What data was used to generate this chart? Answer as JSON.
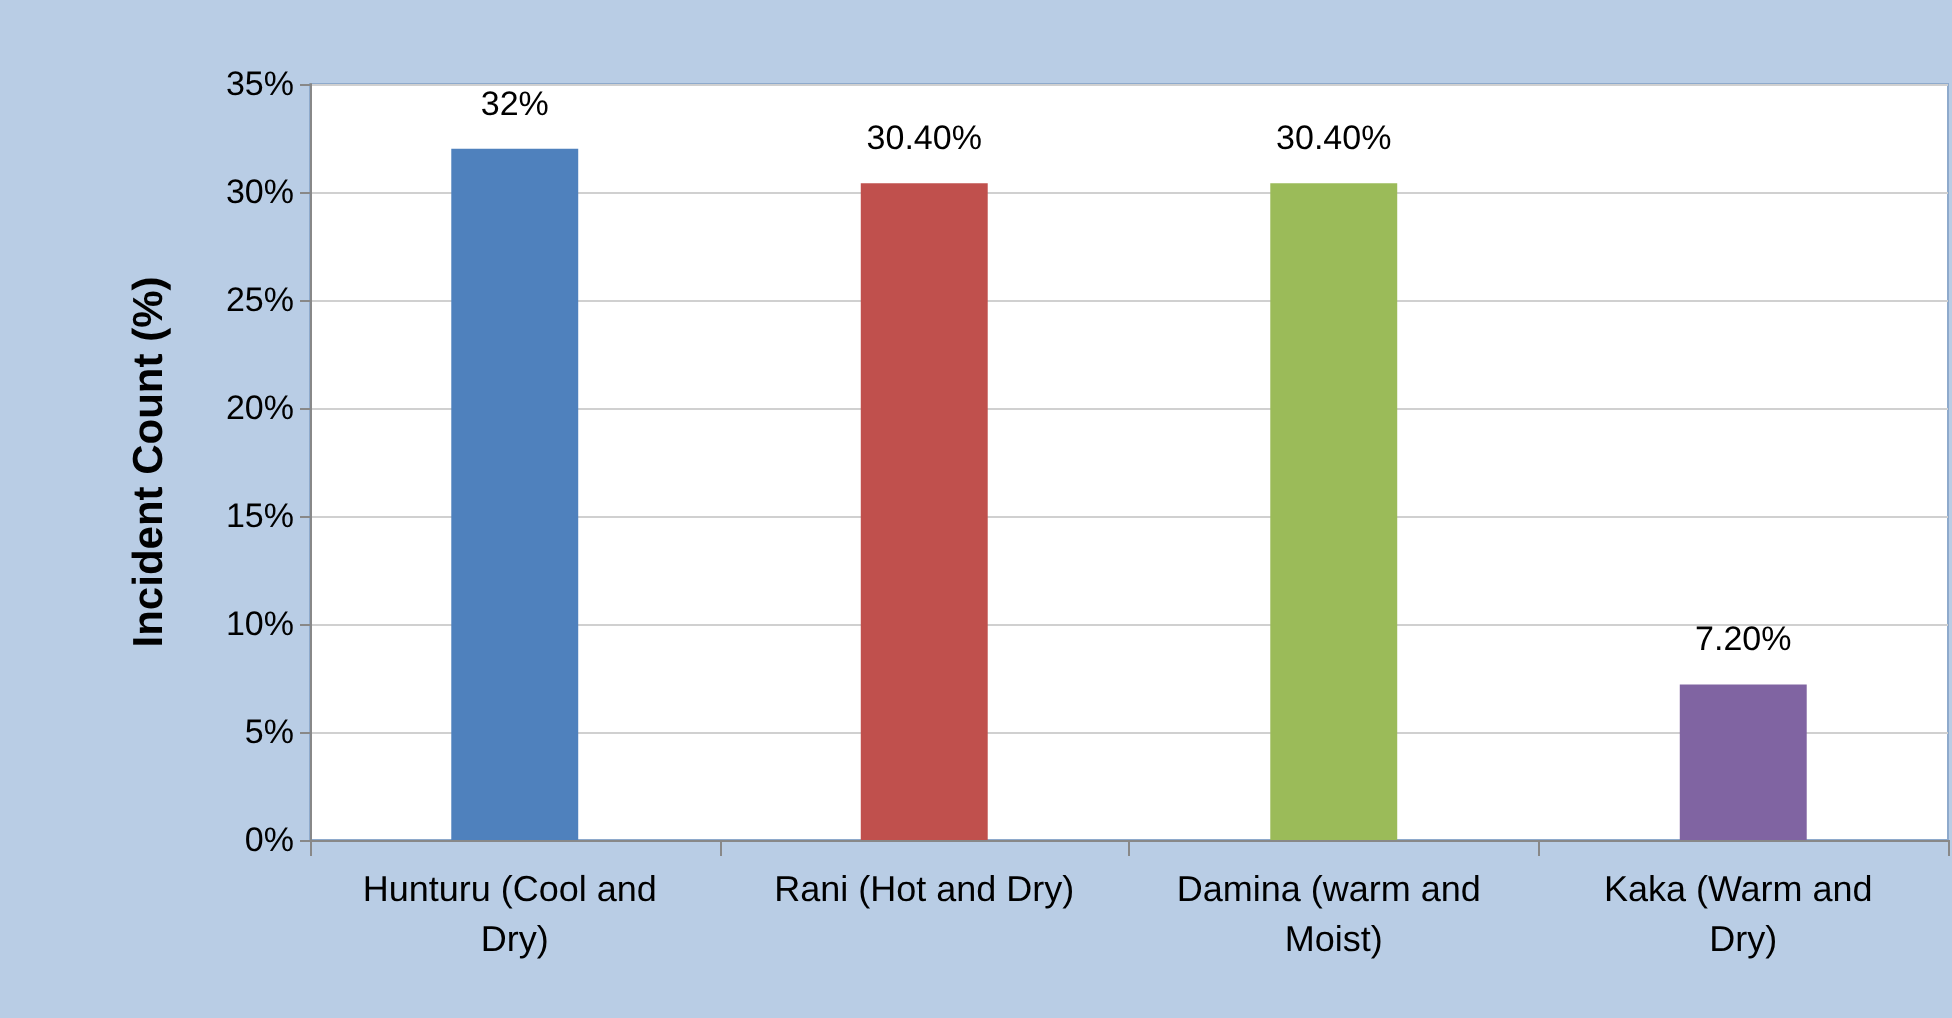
{
  "chart_data": {
    "type": "bar",
    "ylabel": "Incident Count (%)",
    "categories": [
      "Hunturu (Cool and Dry)",
      "Rani (Hot and Dry)",
      "Damina (warm and Moist)",
      "Kaka (Warm and Dry)"
    ],
    "values": [
      32,
      30.4,
      30.4,
      7.2
    ],
    "colors": [
      "#4f81bd",
      "#c0504d",
      "#9bbb59",
      "#8064a2"
    ],
    "value_labels": [
      "32%",
      "30.40%",
      "30.40%",
      "7.20%"
    ],
    "ylim": [
      0,
      35
    ],
    "yticks": [
      {
        "value": 0,
        "label": "0%"
      },
      {
        "value": 5,
        "label": "5%"
      },
      {
        "value": 10,
        "label": "10%"
      },
      {
        "value": 15,
        "label": "15%"
      },
      {
        "value": 20,
        "label": "20%"
      },
      {
        "value": 25,
        "label": "25%"
      },
      {
        "value": 30,
        "label": "30%"
      },
      {
        "value": 35,
        "label": "35%"
      }
    ],
    "grid": "y"
  }
}
